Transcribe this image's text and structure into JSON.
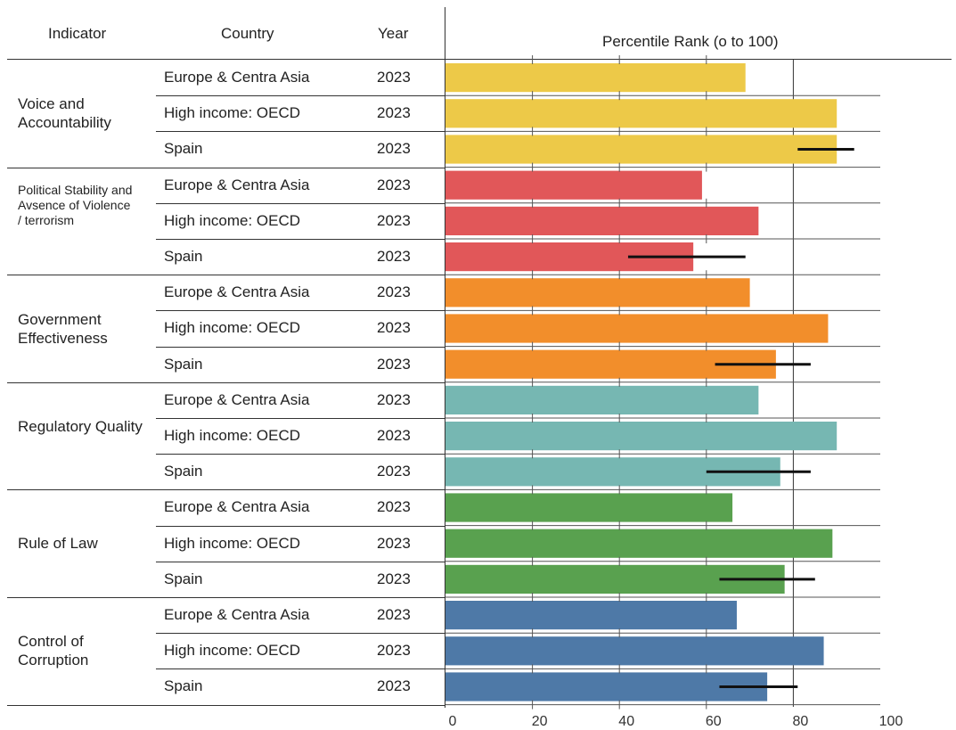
{
  "headers": {
    "indicator": "Indicator",
    "country": "Country",
    "year": "Year",
    "chart": "Percentile Rank (o to 100)"
  },
  "chart_data": {
    "type": "bar",
    "orientation": "horizontal",
    "title": "Percentile Rank (o to 100)",
    "xlim": [
      0,
      100
    ],
    "x_ticks": [
      "0",
      "20",
      "40",
      "60",
      "80",
      "100"
    ],
    "reference_line": 80,
    "groups": [
      {
        "indicator": "Voice and Accountability",
        "color": "#EDC948",
        "rows": [
          {
            "country": "Europe & Centra Asia",
            "year": "2023",
            "value": 69
          },
          {
            "country": "High income: OECD",
            "year": "2023",
            "value": 90
          },
          {
            "country": "Spain",
            "year": "2023",
            "value": 90,
            "ci": [
              81,
              94
            ]
          }
        ]
      },
      {
        "indicator": "Political Stability and Avsence of Violence / terrorism",
        "color": "#E15759",
        "rows": [
          {
            "country": "Europe & Centra Asia",
            "year": "2023",
            "value": 59
          },
          {
            "country": "High income: OECD",
            "year": "2023",
            "value": 72
          },
          {
            "country": "Spain",
            "year": "2023",
            "value": 57,
            "ci": [
              42,
              69
            ]
          }
        ]
      },
      {
        "indicator": "Government Effectiveness",
        "color": "#F28E2B",
        "rows": [
          {
            "country": "Europe & Centra Asia",
            "year": "2023",
            "value": 70
          },
          {
            "country": "High income: OECD",
            "year": "2023",
            "value": 88
          },
          {
            "country": "Spain",
            "year": "2023",
            "value": 76,
            "ci": [
              62,
              84
            ]
          }
        ]
      },
      {
        "indicator": "Regulatory Quality",
        "color": "#76B7B2",
        "rows": [
          {
            "country": "Europe & Centra Asia",
            "year": "2023",
            "value": 72
          },
          {
            "country": "High income: OECD",
            "year": "2023",
            "value": 90
          },
          {
            "country": "Spain",
            "year": "2023",
            "value": 77,
            "ci": [
              60,
              84
            ]
          }
        ]
      },
      {
        "indicator": "Rule of Law",
        "color": "#59A14F",
        "rows": [
          {
            "country": "Europe & Centra Asia",
            "year": "2023",
            "value": 66
          },
          {
            "country": "High income: OECD",
            "year": "2023",
            "value": 89
          },
          {
            "country": "Spain",
            "year": "2023",
            "value": 78,
            "ci": [
              63,
              85
            ]
          }
        ]
      },
      {
        "indicator": "Control of Corruption",
        "color": "#4E79A7",
        "rows": [
          {
            "country": "Europe & Centra Asia",
            "year": "2023",
            "value": 67
          },
          {
            "country": "High income: OECD",
            "year": "2023",
            "value": 87
          },
          {
            "country": "Spain",
            "year": "2023",
            "value": 74,
            "ci": [
              63,
              81
            ]
          }
        ]
      }
    ]
  }
}
